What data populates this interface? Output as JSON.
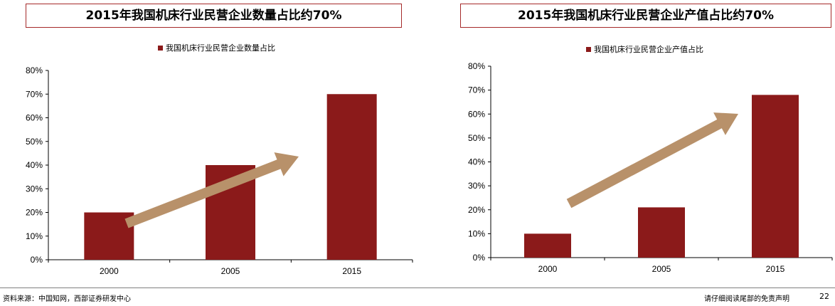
{
  "charts": [
    {
      "title": "2015年我国机床行业民营企业数量占比约70%",
      "chart_data": {
        "type": "bar",
        "categories": [
          "2000",
          "2005",
          "2015"
        ],
        "series": [
          {
            "name": "我国机床行业民营企业数量占比",
            "values": [
              0.2,
              0.4,
              0.7
            ]
          }
        ],
        "ylim": [
          0,
          0.8
        ],
        "yticks": [
          "0%",
          "10%",
          "20%",
          "30%",
          "40%",
          "50%",
          "60%",
          "70%",
          "80%"
        ],
        "legend": "top-center",
        "annotation": "upward trend arrow",
        "grid": false
      }
    },
    {
      "title": "2015年我国机床行业民营企业产值占比约70%",
      "chart_data": {
        "type": "bar",
        "categories": [
          "2000",
          "2005",
          "2015"
        ],
        "series": [
          {
            "name": "我国机床行业民营企业产值占比",
            "values": [
              0.1,
              0.21,
              0.68
            ]
          }
        ],
        "ylim": [
          0,
          0.8
        ],
        "yticks": [
          "0%",
          "10%",
          "20%",
          "30%",
          "40%",
          "50%",
          "60%",
          "70%",
          "80%"
        ],
        "legend": "top-center",
        "annotation": "upward trend arrow",
        "grid": false
      }
    }
  ],
  "colors": {
    "bar": "#8b1a1a",
    "arrow": "#b8916a",
    "title_border": "#a52a2a"
  },
  "footer": {
    "source": "资料来源：中国知网，西部证券研发中心",
    "disclaimer": "请仔细阅读尾部的免责声明",
    "page": "22"
  }
}
